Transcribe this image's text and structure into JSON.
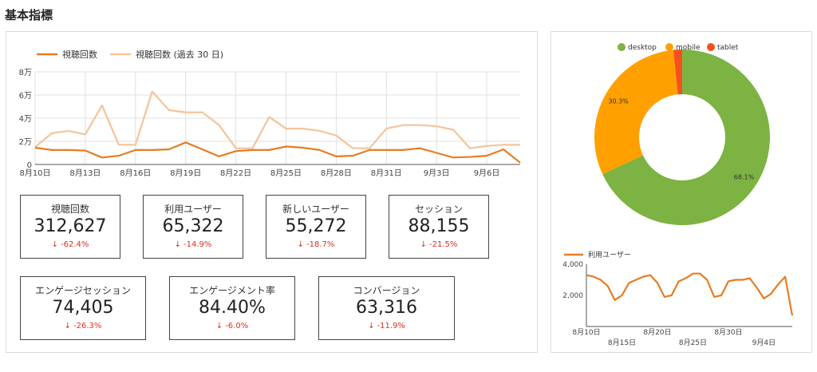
{
  "page": {
    "title": "基本指標"
  },
  "trend_chart": {
    "legend": [
      "視聴回数",
      "視聴回数 (過去 30 日)"
    ],
    "colors": [
      "#e67c22",
      "#f5c49a"
    ]
  },
  "scorecards": [
    {
      "label": "視聴回数",
      "value": "312,627",
      "change": "-62.4%"
    },
    {
      "label": "利用ユーザー",
      "value": "65,322",
      "change": "-14.9%"
    },
    {
      "label": "新しいユーザー",
      "value": "55,272",
      "change": "-18.7%"
    },
    {
      "label": "セッション",
      "value": "88,155",
      "change": "-21.5%"
    },
    {
      "label": "エンゲージセッション",
      "value": "74,405",
      "change": "-26.3%"
    },
    {
      "label": "エンゲージメント率",
      "value": "84.40%",
      "change": "-6.0%"
    },
    {
      "label": "コンバージョン",
      "value": "63,316",
      "change": "-11.9%"
    }
  ],
  "donut": {
    "legend": [
      "desktop",
      "mobile",
      "tablet"
    ],
    "colors": [
      "#7cb342",
      "#ffa000",
      "#f4511e"
    ]
  },
  "mini_chart": {
    "legend": "利用ユーザー",
    "color": "#e67c22"
  },
  "chart_data": [
    {
      "type": "line",
      "x": [
        "8月10日",
        "8月11日",
        "8月12日",
        "8月13日",
        "8月14日",
        "8月15日",
        "8月16日",
        "8月17日",
        "8月18日",
        "8月19日",
        "8月20日",
        "8月21日",
        "8月22日",
        "8月23日",
        "8月24日",
        "8月25日",
        "8月26日",
        "8月27日",
        "8月28日",
        "8月29日",
        "8月30日",
        "8月31日",
        "9月1日",
        "9月2日",
        "9月3日",
        "9月4日",
        "9月5日",
        "9月6日",
        "9月7日",
        "9月8日"
      ],
      "x_ticks": [
        "8月10日",
        "8月13日",
        "8月16日",
        "8月19日",
        "8月22日",
        "8月25日",
        "8月28日",
        "8月31日",
        "9月3日",
        "9月6日"
      ],
      "series": [
        {
          "name": "視聴回数",
          "values": [
            14500,
            12500,
            12500,
            12000,
            6000,
            7500,
            12500,
            12500,
            13000,
            19000,
            13000,
            7000,
            11500,
            12500,
            12500,
            15500,
            14500,
            12500,
            7000,
            7500,
            12500,
            12500,
            12500,
            14000,
            10000,
            6000,
            6500,
            7500,
            13000,
            1500
          ]
        },
        {
          "name": "視聴回数 (過去 30 日)",
          "values": [
            15000,
            27000,
            29000,
            26000,
            51000,
            17000,
            17000,
            63000,
            47000,
            45000,
            45000,
            34000,
            14000,
            14000,
            41000,
            31000,
            31000,
            29000,
            25000,
            14000,
            14000,
            31000,
            34000,
            34000,
            33000,
            30000,
            14000,
            16000,
            17000,
            17000
          ]
        }
      ],
      "y_ticks": [
        "0",
        "2万",
        "4万",
        "6万",
        "8万"
      ],
      "ylim": [
        0,
        80000
      ]
    },
    {
      "type": "pie",
      "categories": [
        "desktop",
        "mobile",
        "tablet"
      ],
      "values": [
        68.1,
        30.3,
        1.6
      ],
      "labels": [
        "68.1%",
        "30.3%",
        ""
      ]
    },
    {
      "type": "line",
      "x": [
        "8月10日",
        "8月11日",
        "8月12日",
        "8月13日",
        "8月14日",
        "8月15日",
        "8月16日",
        "8月17日",
        "8月18日",
        "8月19日",
        "8月20日",
        "8月21日",
        "8月22日",
        "8月23日",
        "8月24日",
        "8月25日",
        "8月26日",
        "8月27日",
        "8月28日",
        "8月29日",
        "8月30日",
        "8月31日",
        "9月1日",
        "9月2日",
        "9月3日",
        "9月4日",
        "9月5日",
        "9月6日",
        "9月7日",
        "9月8日"
      ],
      "x_ticks_top": [
        "8月10日",
        "8月20日",
        "8月30日"
      ],
      "x_ticks_bottom": [
        "8月15日",
        "8月25日",
        "9月4日"
      ],
      "series": [
        {
          "name": "利用ユーザー",
          "values": [
            3300,
            3200,
            3000,
            2600,
            1700,
            2000,
            2800,
            3000,
            3200,
            3300,
            2800,
            1900,
            2000,
            2900,
            3100,
            3400,
            3400,
            3000,
            1900,
            2000,
            2900,
            3000,
            3000,
            3100,
            2500,
            1800,
            2100,
            2700,
            3200,
            700
          ]
        }
      ],
      "y_ticks": [
        "2,000",
        "4,000"
      ],
      "ylim": [
        0,
        4000
      ]
    }
  ]
}
